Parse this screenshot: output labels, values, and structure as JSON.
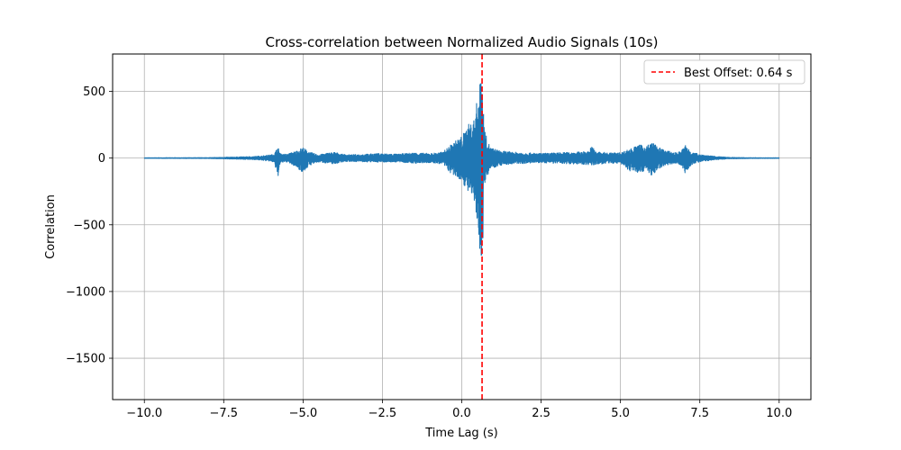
{
  "chart_data": {
    "type": "line",
    "title": "Cross-correlation between Normalized Audio Signals (10s)",
    "xlabel": "Time Lag (s)",
    "ylabel": "Correlation",
    "xlim": [
      -11.0,
      11.0
    ],
    "ylim": [
      -1810,
      780
    ],
    "x_ticks": [
      -10.0,
      -7.5,
      -5.0,
      -2.5,
      0.0,
      2.5,
      5.0,
      7.5,
      10.0
    ],
    "x_tick_labels": [
      "−10.0",
      "−7.5",
      "−5.0",
      "−2.5",
      "0.0",
      "2.5",
      "5.0",
      "7.5",
      "10.0"
    ],
    "y_ticks": [
      500,
      0,
      -500,
      -1000,
      -1500
    ],
    "y_tick_labels": [
      "500",
      "0",
      "−500",
      "−1000",
      "−1500"
    ],
    "grid": true,
    "legend_position": "top-right",
    "series": [
      {
        "name": "",
        "color": "#1f77b4",
        "envelope": {
          "x": [
            -10.0,
            -8.0,
            -6.5,
            -6.0,
            -5.9,
            -5.8,
            -5.75,
            -5.7,
            -5.5,
            -5.2,
            -5.0,
            -4.8,
            -4.5,
            -4.2,
            -4.0,
            -3.8,
            -3.5,
            -3.0,
            -2.6,
            -2.0,
            -1.5,
            -1.0,
            -0.6,
            -0.3,
            0.0,
            0.2,
            0.4,
            0.55,
            0.6,
            0.64,
            0.68,
            0.75,
            0.9,
            1.2,
            1.6,
            2.0,
            2.5,
            3.0,
            3.6,
            4.0,
            4.1,
            4.2,
            4.6,
            5.0,
            5.3,
            5.6,
            5.8,
            6.0,
            6.2,
            6.4,
            6.7,
            6.9,
            7.05,
            7.15,
            7.3,
            7.6,
            8.0,
            8.5,
            9.0,
            10.0
          ],
          "upper": [
            2,
            3,
            12,
            25,
            35,
            85,
            60,
            30,
            30,
            55,
            80,
            45,
            25,
            40,
            45,
            30,
            25,
            30,
            35,
            30,
            40,
            35,
            45,
            110,
            165,
            250,
            300,
            560,
            560,
            330,
            300,
            180,
            80,
            55,
            45,
            40,
            35,
            40,
            45,
            50,
            100,
            50,
            40,
            40,
            70,
            100,
            90,
            120,
            80,
            60,
            40,
            50,
            100,
            70,
            40,
            25,
            12,
            5,
            3,
            2
          ],
          "lower": [
            -2,
            -3,
            -12,
            -25,
            -40,
            -155,
            -80,
            -35,
            -30,
            -70,
            -110,
            -55,
            -30,
            -40,
            -45,
            -30,
            -25,
            -30,
            -30,
            -30,
            -40,
            -35,
            -45,
            -130,
            -170,
            -260,
            -350,
            -680,
            -730,
            -380,
            -300,
            -170,
            -80,
            -55,
            -45,
            -40,
            -35,
            -40,
            -45,
            -50,
            -60,
            -50,
            -40,
            -40,
            -100,
            -110,
            -90,
            -140,
            -80,
            -55,
            -40,
            -50,
            -120,
            -75,
            -40,
            -25,
            -12,
            -5,
            -3,
            -2
          ]
        }
      }
    ],
    "annotations": [
      {
        "type": "vline",
        "x": 0.64,
        "color": "#ff0000",
        "style": "dashed",
        "legend_label": "Best Offset: 0.64 s"
      }
    ]
  }
}
